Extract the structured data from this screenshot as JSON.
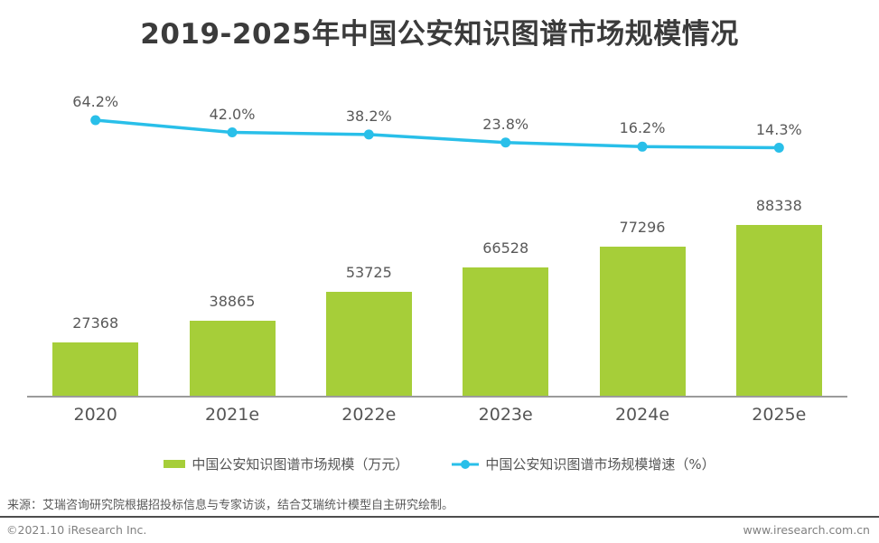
{
  "title": "2019-2025年中国公安知识图谱市场规模情况",
  "chart_data": {
    "type": "bar",
    "subtype": "bar-and-line-combo",
    "categories": [
      "2020",
      "2021e",
      "2022e",
      "2023e",
      "2024e",
      "2025e"
    ],
    "series": [
      {
        "name": "中国公安知识图谱市场规模（万元）",
        "type": "bar",
        "color": "#A6CE39",
        "values": [
          27368,
          38865,
          53725,
          66528,
          77296,
          88338
        ],
        "labels": [
          "27368",
          "38865",
          "53725",
          "66528",
          "77296",
          "88338"
        ]
      },
      {
        "name": "中国公安知识图谱市场规模增速（%）",
        "type": "line",
        "color": "#29BFE9",
        "values": [
          64.2,
          42.0,
          38.2,
          23.8,
          16.2,
          14.3
        ],
        "labels": [
          "64.2%",
          "42.0%",
          "38.2%",
          "23.8%",
          "16.2%",
          "14.3%"
        ]
      }
    ],
    "xlabel": "",
    "ylabel": "",
    "grid": false,
    "value_axis_visible": false,
    "legend_position": "bottom",
    "data_labels_visible": true
  },
  "colors": {
    "bar": "#A6CE39",
    "line": "#29BFE9",
    "axis_line": "#9b9b9b",
    "title_text": "#3b3b3b",
    "label_text": "#595959",
    "footer_text": "#808080"
  },
  "source_note": "来源：艾瑞咨询研究院根据招投标信息与专家访谈，结合艾瑞统计模型自主研究绘制。",
  "footer": {
    "left": "©2021.10 iResearch Inc.",
    "right": "www.iresearch.com.cn"
  }
}
